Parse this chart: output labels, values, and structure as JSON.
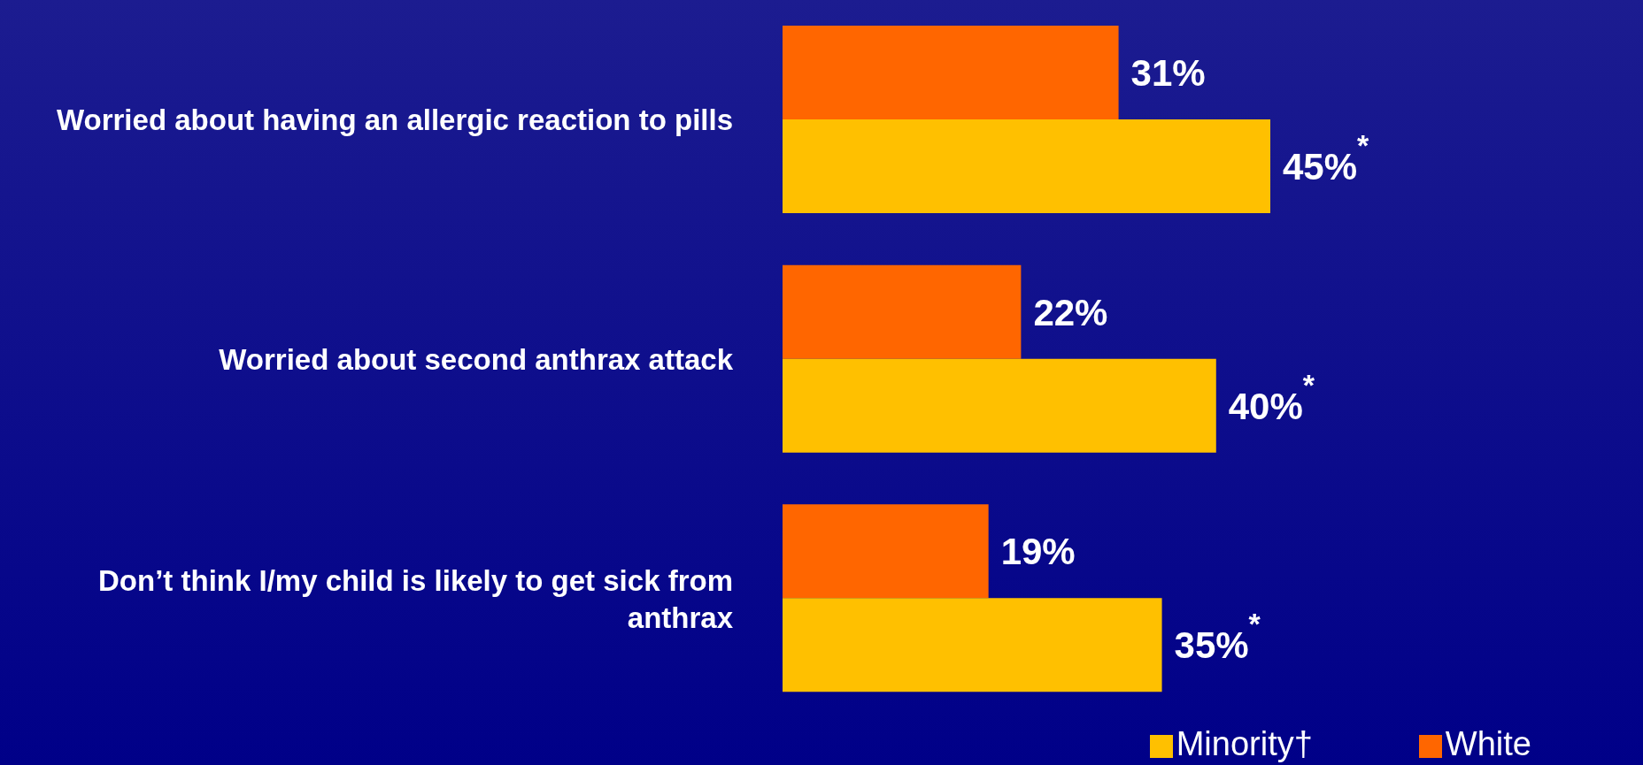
{
  "chart_data": {
    "type": "bar",
    "orientation": "horizontal",
    "categories": [
      "Worried about having an allergic reaction to pills",
      "Worried about second anthrax attack",
      "Don’t think I/my child is likely to get sick from anthrax"
    ],
    "series": [
      {
        "name": "White",
        "color": "#ff6600",
        "values": [
          31,
          22,
          19
        ],
        "value_labels": [
          "31%",
          "22%",
          "19%"
        ]
      },
      {
        "name": "Minority†",
        "color": "#ffc000",
        "values": [
          45,
          40,
          35
        ],
        "value_labels": [
          "45%$^{*}$",
          "40%$^{*}$",
          "35%$^{*}$"
        ]
      }
    ],
    "legend": "bottom right"
  }
}
